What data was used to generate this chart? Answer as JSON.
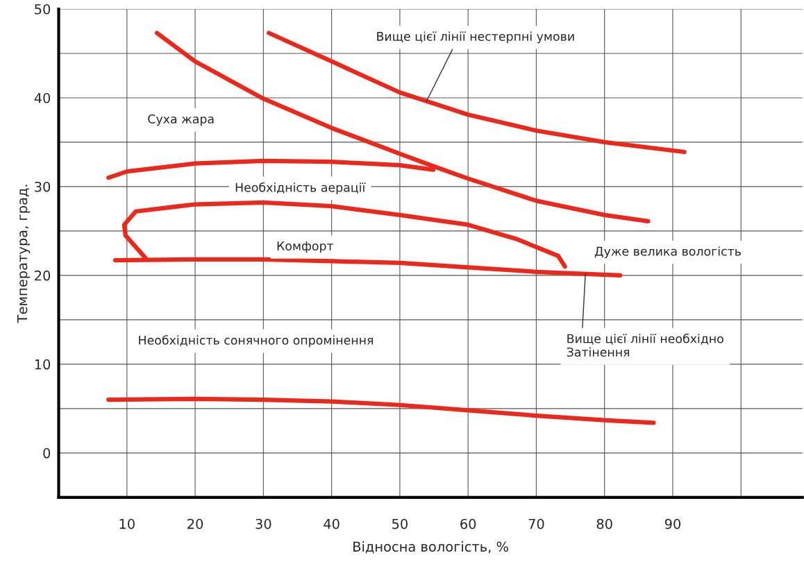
{
  "chart_data": {
    "type": "line",
    "xlabel": "Відносна вологість, %",
    "ylabel": "Температура, град.",
    "xlim": [
      0,
      109
    ],
    "xticks": [
      10,
      20,
      30,
      40,
      50,
      60,
      70,
      80,
      90,
      {
        "value": 100,
        "label": null
      }
    ],
    "ylim": [
      -5,
      50
    ],
    "yticks": [
      0,
      {
        "value": 5,
        "label": null
      },
      10,
      {
        "value": 15,
        "label": null
      },
      20,
      {
        "value": 25,
        "label": null
      },
      30,
      {
        "value": 35,
        "label": null
      },
      40,
      {
        "value": 45,
        "label": null
      },
      50
    ],
    "grid": true,
    "legend": false,
    "marker": "none",
    "line_style": "solid",
    "series": [
      {
        "color": "#e8291c",
        "x": [
          30.8,
          40,
          50,
          60,
          70,
          80,
          91.7
        ],
        "values": [
          47.3,
          44.1,
          40.6,
          38.1,
          36.3,
          35.0,
          33.9
        ]
      },
      {
        "color": "#e8291c",
        "x": [
          14.4,
          20,
          30,
          40,
          50,
          54.9,
          60,
          70,
          80,
          86.4
        ],
        "values": [
          47.3,
          44.1,
          39.9,
          36.6,
          33.7,
          32.3,
          30.9,
          28.4,
          26.8,
          26.1
        ]
      },
      {
        "color": "#e8291c",
        "x": [
          7.3,
          10,
          20,
          30,
          40,
          50,
          54.9
        ],
        "values": [
          31.0,
          31.7,
          32.6,
          32.9,
          32.8,
          32.4,
          31.9
        ]
      },
      {
        "color": "#e8291c",
        "x": [
          12.8,
          9.8,
          9.6,
          11.3,
          20,
          30,
          40,
          50,
          60,
          67.1,
          73.2,
          74.2
        ],
        "values": [
          21.9,
          24.5,
          25.7,
          27.2,
          28.0,
          28.2,
          27.8,
          26.8,
          25.7,
          24.1,
          22.2,
          21.0
        ]
      },
      {
        "color": "#e8291c",
        "x": [
          8.3,
          20,
          30,
          40,
          50,
          60,
          70,
          82.3
        ],
        "values": [
          21.7,
          21.8,
          21.8,
          21.6,
          21.4,
          20.9,
          20.4,
          20.0
        ]
      },
      {
        "color": "#e8291c",
        "x": [
          7.3,
          20,
          30,
          40,
          50,
          60,
          70,
          80,
          87.2
        ],
        "values": [
          6.0,
          6.1,
          6.0,
          5.8,
          5.4,
          4.8,
          4.2,
          3.7,
          3.4
        ]
      }
    ],
    "annotations": [
      {
        "text": "Вище цієї лінії нестерпні умови",
        "x": 53.9,
        "y": 39.6
      },
      "Суха жара",
      "Необхідність аерації",
      "Комфорт",
      "Дуже велика вологість",
      {
        "text": "Вище цієї лінії необхідно\nЗатінення",
        "x": 77.2,
        "y": 20.2
      },
      "Необхідність сонячного опромінення"
    ]
  }
}
